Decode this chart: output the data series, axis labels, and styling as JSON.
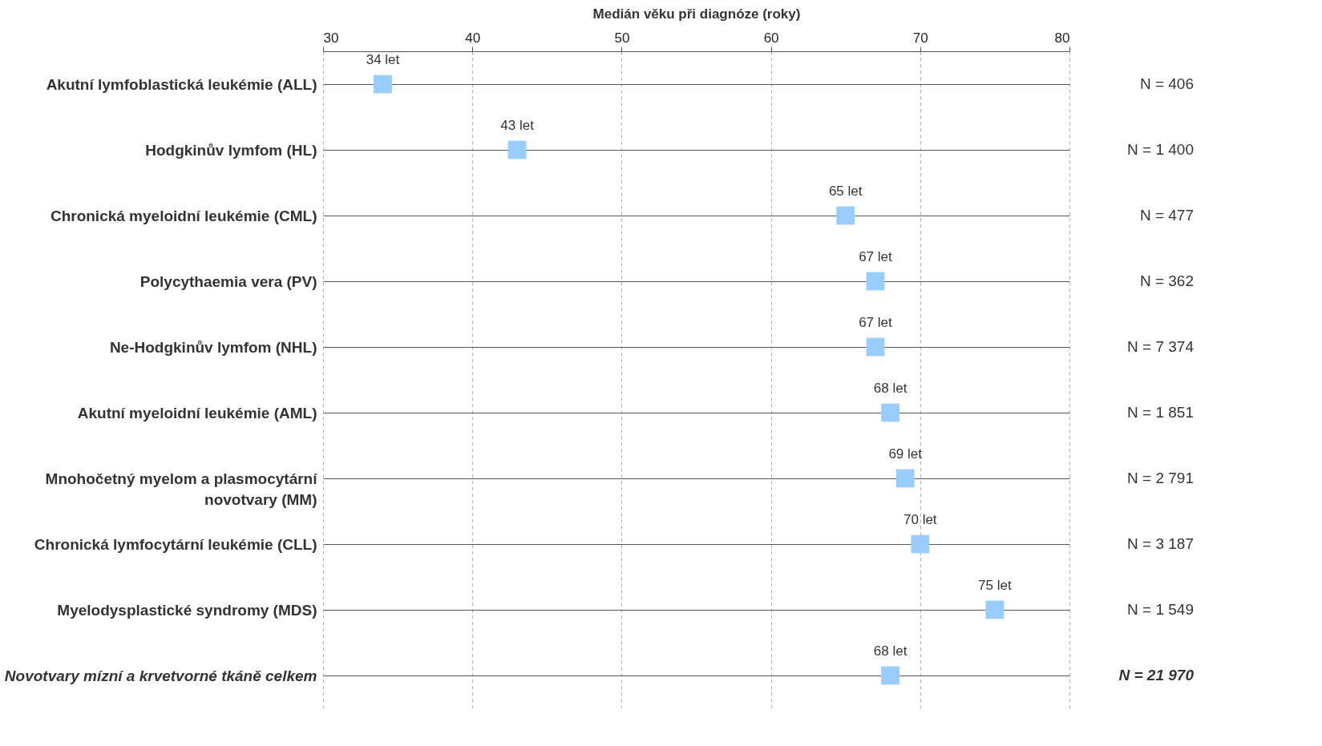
{
  "chart_data": {
    "type": "scatter",
    "orientation": "horizontal",
    "xlabel": "Medián věku při diagnóze (roky)",
    "categories": [
      "Akutní lymfoblastická leukémie (ALL)",
      "Hodgkinův lymfom (HL)",
      "Chronická myeloidní leukémie (CML)",
      "Polycythaemia vera (PV)",
      "Ne-Hodgkinův lymfom (NHL)",
      "Akutní myeloidní leukémie (AML)",
      "Mnohočetný myelom a plasmocytární novotvary (MM)",
      "Chronická lymfocytární leukémie (CLL)",
      "Myelodysplastické syndromy (MDS)",
      "Novotvary mízní a krvetvorné tkáně celkem"
    ],
    "values": [
      34,
      43,
      65,
      67,
      67,
      68,
      69,
      70,
      75,
      68
    ],
    "value_labels": [
      "34 let",
      "43 let",
      "65 let",
      "67 let",
      "67 let",
      "68 let",
      "69 let",
      "70 let",
      "75 let",
      "68 let"
    ],
    "color": "#99ccff",
    "marker": "square",
    "grid": true,
    "xlim": [
      30,
      80
    ],
    "xticks": [
      30,
      40,
      50,
      60,
      70,
      80
    ],
    "annotations": [
      "N = 406",
      "N = 1 400",
      "N = 477",
      "N = 362",
      "N = 7 374",
      "N = 1 851",
      "N = 2 791",
      "N = 3 187",
      "N = 1 549",
      "N = 21 970"
    ]
  }
}
